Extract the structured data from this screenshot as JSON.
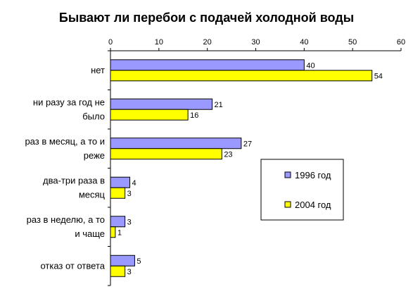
{
  "chart_data": {
    "type": "bar",
    "orientation": "horizontal",
    "title": "Бывают ли перебои с подачей холодной воды",
    "xlabel": "",
    "ylabel": "",
    "xlim": [
      0,
      60
    ],
    "x_ticks": [
      0,
      10,
      20,
      30,
      40,
      50,
      60
    ],
    "categories": [
      [
        "нет"
      ],
      [
        "ни разу за год не",
        "было"
      ],
      [
        "раз в месяц, а то и",
        "реже"
      ],
      [
        "два-три раза в",
        "месяц"
      ],
      [
        "раз в неделю, а то",
        "и чаще"
      ],
      [
        "отказ от ответа"
      ]
    ],
    "series": [
      {
        "name": "1996 год",
        "values": [
          40,
          21,
          27,
          4,
          3,
          5
        ],
        "color": "#9999ff"
      },
      {
        "name": "2004 год",
        "values": [
          54,
          16,
          23,
          3,
          1,
          3
        ],
        "color": "#ffff00"
      }
    ],
    "grid": false,
    "legend": "right",
    "data_labels": true
  }
}
